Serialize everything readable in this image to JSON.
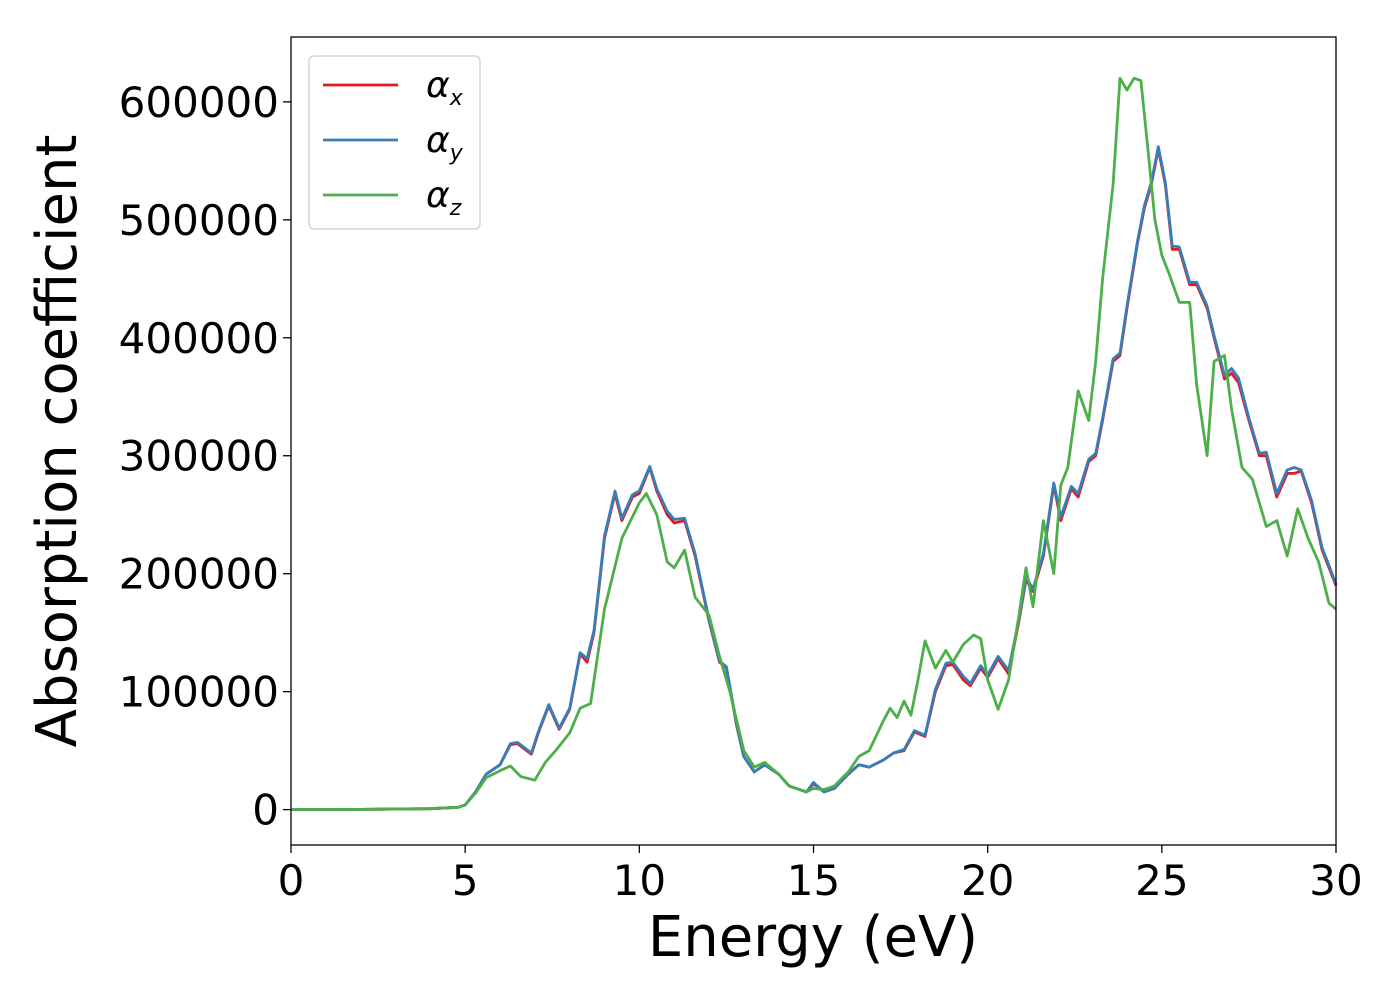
{
  "chart_data": {
    "type": "line",
    "title": "",
    "xlabel": "Energy (eV)",
    "ylabel": "Absorption coefficient",
    "xlim": [
      0,
      30
    ],
    "ylim": [
      -30000,
      655000
    ],
    "xticks": [
      0,
      5,
      10,
      15,
      20,
      25,
      30
    ],
    "xtick_labels": [
      "0",
      "5",
      "10",
      "15",
      "20",
      "25",
      "30"
    ],
    "yticks": [
      0,
      100000,
      200000,
      300000,
      400000,
      500000,
      600000
    ],
    "ytick_labels": [
      "0",
      "100000",
      "200000",
      "300000",
      "400000",
      "500000",
      "600000"
    ],
    "grid": false,
    "legend_position": "top-left",
    "series": [
      {
        "name": "αx",
        "legend_symbol": "α",
        "legend_sub": "x",
        "color": "#e41a1c",
        "x": [
          0,
          2,
          4,
          4.8,
          5.0,
          5.3,
          5.6,
          6.0,
          6.3,
          6.5,
          6.9,
          7.1,
          7.4,
          7.7,
          8.0,
          8.3,
          8.5,
          8.7,
          9.0,
          9.3,
          9.5,
          9.8,
          10.0,
          10.3,
          10.5,
          10.8,
          11.0,
          11.3,
          11.6,
          12.0,
          12.3,
          12.5,
          12.8,
          13.0,
          13.3,
          13.6,
          14.0,
          14.3,
          14.8,
          15.0,
          15.3,
          15.6,
          16.0,
          16.3,
          16.6,
          17.0,
          17.3,
          17.6,
          17.9,
          18.2,
          18.5,
          18.8,
          19.0,
          19.3,
          19.5,
          19.8,
          20.0,
          20.3,
          20.6,
          20.9,
          21.1,
          21.3,
          21.6,
          21.9,
          22.1,
          22.4,
          22.6,
          22.9,
          23.1,
          23.3,
          23.6,
          23.8,
          24.0,
          24.3,
          24.5,
          24.7,
          24.9,
          25.1,
          25.3,
          25.5,
          25.8,
          26.0,
          26.3,
          26.5,
          26.8,
          27.0,
          27.2,
          27.5,
          27.8,
          28.0,
          28.3,
          28.6,
          28.8,
          29.0,
          29.3,
          29.6,
          29.8,
          30.0
        ],
        "y": [
          0,
          200,
          800,
          2000,
          4000,
          15000,
          30000,
          38000,
          55000,
          56000,
          47000,
          65000,
          88000,
          68000,
          85000,
          132000,
          125000,
          150000,
          230000,
          268000,
          245000,
          265000,
          268000,
          290000,
          270000,
          250000,
          243000,
          245000,
          215000,
          160000,
          125000,
          120000,
          70000,
          45000,
          32000,
          38000,
          30000,
          20000,
          15000,
          22000,
          15000,
          18000,
          30000,
          38000,
          36000,
          42000,
          48000,
          50000,
          66000,
          62000,
          100000,
          122000,
          123000,
          110000,
          105000,
          120000,
          112000,
          128000,
          115000,
          160000,
          195000,
          185000,
          215000,
          275000,
          245000,
          272000,
          265000,
          295000,
          300000,
          330000,
          380000,
          385000,
          425000,
          480000,
          510000,
          530000,
          560000,
          530000,
          475000,
          475000,
          445000,
          445000,
          425000,
          400000,
          365000,
          370000,
          362000,
          330000,
          300000,
          300000,
          265000,
          285000,
          285000,
          287000,
          260000,
          220000,
          205000,
          190000
        ]
      },
      {
        "name": "αy",
        "legend_symbol": "α",
        "legend_sub": "y",
        "color": "#377eb8",
        "x": [
          0,
          2,
          4,
          4.8,
          5.0,
          5.3,
          5.6,
          6.0,
          6.3,
          6.5,
          6.9,
          7.1,
          7.4,
          7.7,
          8.0,
          8.3,
          8.5,
          8.7,
          9.0,
          9.3,
          9.5,
          9.8,
          10.0,
          10.3,
          10.5,
          10.8,
          11.0,
          11.3,
          11.6,
          12.0,
          12.3,
          12.5,
          12.8,
          13.0,
          13.3,
          13.6,
          14.0,
          14.3,
          14.8,
          15.0,
          15.3,
          15.6,
          16.0,
          16.3,
          16.6,
          17.0,
          17.3,
          17.6,
          17.9,
          18.2,
          18.5,
          18.8,
          19.0,
          19.3,
          19.5,
          19.8,
          20.0,
          20.3,
          20.6,
          20.9,
          21.1,
          21.3,
          21.6,
          21.9,
          22.1,
          22.4,
          22.6,
          22.9,
          23.1,
          23.3,
          23.6,
          23.8,
          24.0,
          24.3,
          24.5,
          24.7,
          24.9,
          25.1,
          25.3,
          25.5,
          25.8,
          26.0,
          26.3,
          26.5,
          26.8,
          27.0,
          27.2,
          27.5,
          27.8,
          28.0,
          28.3,
          28.6,
          28.8,
          29.0,
          29.3,
          29.6,
          29.8,
          30.0
        ],
        "y": [
          0,
          200,
          800,
          2000,
          4000,
          15000,
          30000,
          38000,
          56000,
          57000,
          48000,
          66000,
          89000,
          69000,
          86000,
          133000,
          128000,
          152000,
          232000,
          270000,
          247000,
          267000,
          270000,
          291000,
          272000,
          253000,
          246000,
          247000,
          217000,
          161000,
          126000,
          121000,
          71000,
          45000,
          32000,
          38000,
          30000,
          20000,
          15000,
          23000,
          15000,
          18000,
          30000,
          38000,
          36000,
          42000,
          48000,
          51000,
          67000,
          63000,
          102000,
          124000,
          125000,
          113000,
          107000,
          122000,
          114000,
          130000,
          118000,
          162000,
          197000,
          187000,
          217000,
          277000,
          248000,
          274000,
          268000,
          297000,
          302000,
          332000,
          382000,
          387000,
          427000,
          482000,
          512000,
          532000,
          562000,
          532000,
          478000,
          477000,
          447000,
          447000,
          427000,
          402000,
          368000,
          374000,
          366000,
          332000,
          302000,
          303000,
          268000,
          288000,
          290000,
          288000,
          262000,
          222000,
          207000,
          191000
        ]
      },
      {
        "name": "αz",
        "legend_symbol": "α",
        "legend_sub": "z",
        "color": "#4daf4a",
        "x": [
          0,
          2,
          4,
          4.8,
          5.0,
          5.3,
          5.6,
          6.0,
          6.3,
          6.6,
          7.0,
          7.3,
          7.6,
          8.0,
          8.3,
          8.6,
          9.0,
          9.5,
          10.0,
          10.2,
          10.5,
          10.8,
          11.0,
          11.3,
          11.6,
          12.0,
          12.3,
          12.6,
          13.0,
          13.3,
          13.6,
          14.0,
          14.3,
          14.8,
          15.0,
          15.3,
          15.6,
          16.0,
          16.3,
          16.6,
          17.0,
          17.2,
          17.4,
          17.6,
          17.8,
          18.0,
          18.2,
          18.5,
          18.8,
          19.0,
          19.3,
          19.6,
          19.8,
          20.0,
          20.3,
          20.6,
          20.9,
          21.1,
          21.3,
          21.6,
          21.9,
          22.1,
          22.3,
          22.6,
          22.9,
          23.1,
          23.3,
          23.6,
          23.8,
          24.0,
          24.2,
          24.4,
          24.6,
          24.8,
          25.0,
          25.2,
          25.5,
          25.8,
          26.0,
          26.3,
          26.5,
          26.8,
          27.0,
          27.3,
          27.6,
          28.0,
          28.3,
          28.6,
          28.9,
          29.2,
          29.5,
          29.8,
          30.0
        ],
        "y": [
          0,
          200,
          800,
          2000,
          4000,
          14000,
          27000,
          33000,
          37000,
          28000,
          25000,
          40000,
          50000,
          65000,
          86000,
          90000,
          170000,
          230000,
          260000,
          268000,
          250000,
          210000,
          205000,
          220000,
          180000,
          165000,
          130000,
          100000,
          50000,
          36000,
          40000,
          30000,
          20000,
          15000,
          18000,
          17000,
          20000,
          32000,
          45000,
          50000,
          75000,
          86000,
          78000,
          92000,
          80000,
          110000,
          143000,
          120000,
          135000,
          125000,
          140000,
          148000,
          145000,
          110000,
          85000,
          110000,
          165000,
          205000,
          172000,
          245000,
          200000,
          275000,
          290000,
          355000,
          330000,
          380000,
          450000,
          530000,
          620000,
          610000,
          620000,
          618000,
          560000,
          500000,
          470000,
          455000,
          430000,
          430000,
          360000,
          300000,
          380000,
          385000,
          340000,
          290000,
          280000,
          240000,
          245000,
          215000,
          255000,
          230000,
          210000,
          175000,
          170000
        ]
      }
    ]
  }
}
